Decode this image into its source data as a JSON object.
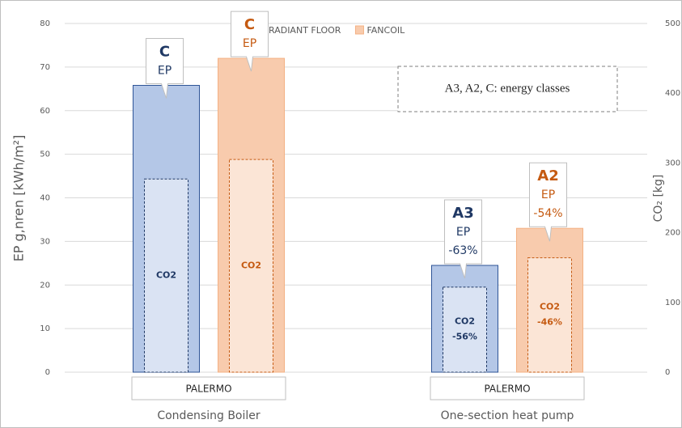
{
  "chart_data": {
    "type": "bar",
    "categories": [
      "Condensing Boiler",
      "One-section heat pump"
    ],
    "category_sublabels": [
      "PALERMO",
      "PALERMO"
    ],
    "y_label": "EP g,nren [kWh/m²]",
    "y2_label": "CO₂ [kg]",
    "ylim": [
      0,
      80
    ],
    "yticks": [
      0,
      10,
      20,
      30,
      40,
      50,
      60,
      70,
      80
    ],
    "y2lim": [
      0,
      500
    ],
    "y2ticks": [
      0,
      100,
      200,
      300,
      400,
      500
    ],
    "grid": true,
    "legend": "top",
    "annotation": "A3, A2, C: energy classes",
    "series": [
      {
        "name": "RADIANT FLOOR",
        "color": "#b4c7e7",
        "edge": "#2f5597",
        "text_color": "#1f3864",
        "values": [
          65.8,
          24.5
        ],
        "callouts": [
          {
            "class": "C",
            "text": "EP"
          },
          {
            "class": "A3",
            "text": "EP",
            "change": "-63%"
          }
        ],
        "co2": {
          "axis": "y2",
          "color": "#dae3f3",
          "values": [
            277,
            122
          ],
          "labels": [
            {
              "text": "CO2"
            },
            {
              "text": "CO2",
              "change": "-56%"
            }
          ]
        }
      },
      {
        "name": "FANCOIL",
        "color": "#f8cbad",
        "edge": "#f4b183",
        "text_color": "#c55a11",
        "values": [
          72,
          33
        ],
        "callouts": [
          {
            "class": "C",
            "text": "EP"
          },
          {
            "class": "A2",
            "text": "EP",
            "change": "-54%"
          }
        ],
        "co2": {
          "axis": "y2",
          "color": "#fbe5d6",
          "values": [
            305,
            164
          ],
          "labels": [
            {
              "text": "CO2"
            },
            {
              "text": "CO2",
              "change": "-46%"
            }
          ]
        }
      }
    ]
  }
}
